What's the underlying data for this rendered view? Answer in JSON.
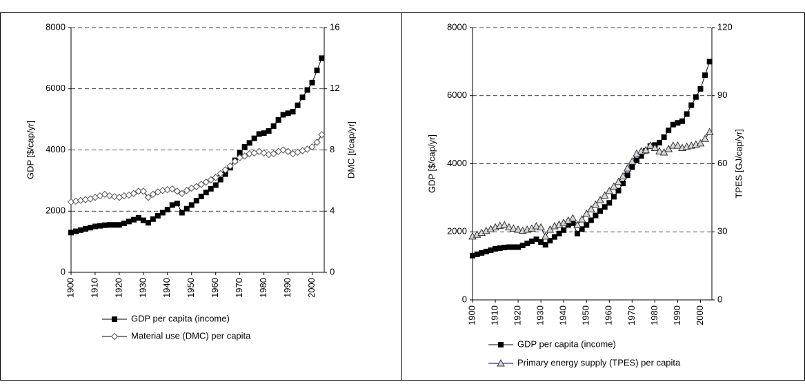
{
  "chart_data": [
    {
      "type": "line",
      "x": [
        1900,
        1902,
        1904,
        1906,
        1908,
        1910,
        1912,
        1914,
        1916,
        1918,
        1920,
        1922,
        1924,
        1926,
        1928,
        1930,
        1932,
        1934,
        1936,
        1938,
        1940,
        1942,
        1944,
        1946,
        1948,
        1950,
        1952,
        1954,
        1956,
        1958,
        1960,
        1962,
        1964,
        1966,
        1968,
        1970,
        1972,
        1974,
        1976,
        1978,
        1980,
        1982,
        1984,
        1986,
        1988,
        1990,
        1992,
        1994,
        1996,
        1998,
        2000,
        2002,
        2004
      ],
      "xlim": [
        1900,
        2005
      ],
      "xticks": [
        1900,
        1910,
        1920,
        1930,
        1940,
        1950,
        1960,
        1970,
        1980,
        1990,
        2000
      ],
      "ylim": [
        0,
        8000
      ],
      "yticks": [
        0,
        2000,
        4000,
        6000,
        8000
      ],
      "ylabel": "GDP [$/cap/yr]",
      "y2lim": [
        0,
        16
      ],
      "y2ticks": [
        0,
        4,
        8,
        12,
        16
      ],
      "y2label": "DMC [t/cap/yr]",
      "grid": true,
      "series": [
        {
          "name": "GDP per capita (income)",
          "color": "#000000",
          "marker": "square",
          "values": [
            1300,
            1340,
            1380,
            1420,
            1460,
            1500,
            1520,
            1540,
            1550,
            1550,
            1550,
            1600,
            1660,
            1720,
            1780,
            1700,
            1620,
            1740,
            1850,
            1950,
            2050,
            2200,
            2250,
            1950,
            2080,
            2200,
            2340,
            2480,
            2610,
            2730,
            2850,
            3030,
            3210,
            3420,
            3660,
            3900,
            4100,
            4230,
            4380,
            4520,
            4550,
            4620,
            4780,
            4980,
            5150,
            5200,
            5250,
            5460,
            5720,
            5960,
            6200,
            6600,
            7000
          ]
        },
        {
          "name": "Material use (DMC) per capita",
          "color": "#000000",
          "marker": "diamond",
          "axis": "y2",
          "values": [
            4.6,
            4.65,
            4.7,
            4.75,
            4.8,
            4.9,
            5.0,
            5.1,
            5.0,
            4.95,
            4.9,
            5.0,
            5.05,
            5.15,
            5.3,
            5.3,
            4.9,
            5.1,
            5.25,
            5.35,
            5.4,
            5.45,
            5.3,
            5.15,
            5.35,
            5.5,
            5.6,
            5.75,
            5.9,
            6.05,
            6.2,
            6.45,
            6.7,
            6.95,
            7.25,
            7.5,
            7.6,
            7.75,
            7.8,
            7.9,
            7.8,
            7.7,
            7.75,
            7.9,
            8.0,
            7.9,
            7.75,
            7.85,
            7.95,
            8.05,
            8.2,
            8.5,
            9.0
          ]
        }
      ]
    },
    {
      "type": "line",
      "x": [
        1900,
        1902,
        1904,
        1906,
        1908,
        1910,
        1912,
        1914,
        1916,
        1918,
        1920,
        1922,
        1924,
        1926,
        1928,
        1930,
        1932,
        1934,
        1936,
        1938,
        1940,
        1942,
        1944,
        1946,
        1948,
        1950,
        1952,
        1954,
        1956,
        1958,
        1960,
        1962,
        1964,
        1966,
        1968,
        1970,
        1972,
        1974,
        1976,
        1978,
        1980,
        1982,
        1984,
        1986,
        1988,
        1990,
        1992,
        1994,
        1996,
        1998,
        2000,
        2002,
        2004
      ],
      "xlim": [
        1900,
        2005
      ],
      "xticks": [
        1900,
        1910,
        1920,
        1930,
        1940,
        1950,
        1960,
        1970,
        1980,
        1990,
        2000
      ],
      "ylim": [
        0,
        8000
      ],
      "yticks": [
        0,
        2000,
        4000,
        6000,
        8000
      ],
      "ylabel": "GDP [$/cap/yr]",
      "y2lim": [
        0,
        120
      ],
      "y2ticks": [
        0,
        30,
        60,
        90,
        120
      ],
      "y2label": "TPES [GJ/cap/yr]",
      "grid": true,
      "series": [
        {
          "name": "GDP per capita (income)",
          "color": "#000000",
          "marker": "square",
          "values": [
            1300,
            1340,
            1380,
            1420,
            1460,
            1500,
            1520,
            1540,
            1550,
            1550,
            1550,
            1600,
            1660,
            1720,
            1780,
            1700,
            1620,
            1740,
            1850,
            1950,
            2050,
            2200,
            2250,
            1950,
            2080,
            2200,
            2340,
            2480,
            2610,
            2730,
            2850,
            3030,
            3210,
            3420,
            3660,
            3900,
            4100,
            4230,
            4380,
            4520,
            4550,
            4620,
            4780,
            4980,
            5150,
            5200,
            5250,
            5460,
            5720,
            5960,
            6200,
            6600,
            7000
          ]
        },
        {
          "name": "Primary energy supply (TPES) per capita",
          "color": "#000080",
          "marker": "triangle",
          "axis": "y2",
          "values": [
            28,
            28.8,
            29.6,
            30.4,
            31.2,
            32,
            32.7,
            33,
            32,
            31.5,
            31,
            30.5,
            31,
            31.5,
            32.5,
            32,
            28,
            31,
            32.5,
            33.2,
            34,
            35,
            36,
            33,
            35.5,
            38,
            40,
            42,
            44,
            46,
            48,
            50,
            52,
            54.5,
            58,
            61,
            64.5,
            65.5,
            66,
            68,
            67,
            65.5,
            65,
            66.5,
            68,
            68,
            67,
            67.5,
            68,
            68.5,
            69,
            71,
            74
          ]
        }
      ]
    }
  ]
}
